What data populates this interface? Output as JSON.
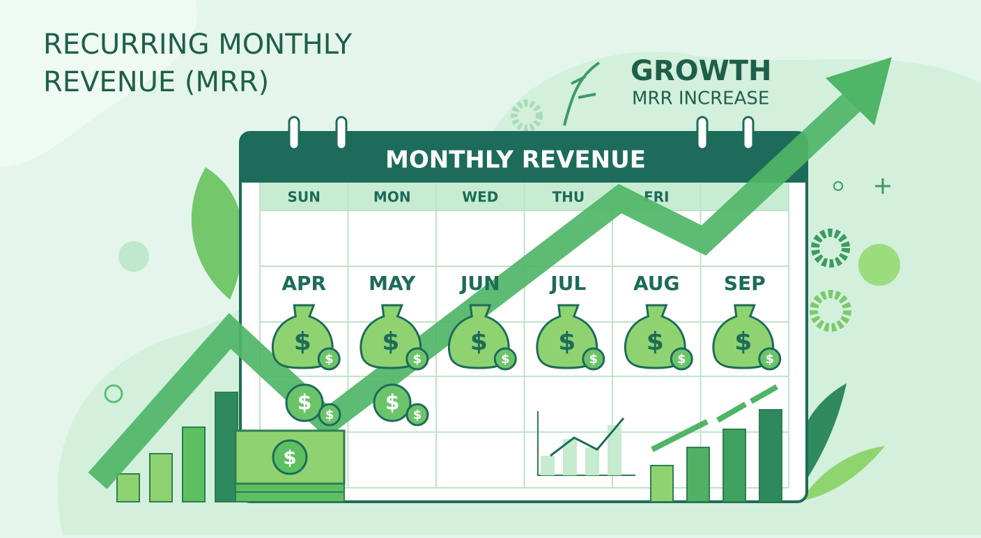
{
  "title_lines": [
    "RECURRING MONTHLY",
    "REVENUE (MRR)"
  ],
  "badge": {
    "title": "GROWTH",
    "subtitle": "MRR INCREASE"
  },
  "calendar": {
    "title": "MONTHLY REVENUE",
    "days": [
      "SUN",
      "MON",
      "WED",
      "THU",
      "FRI"
    ],
    "months": [
      "APR",
      "MAY",
      "JUN",
      "JUL",
      "AUG",
      "SEP"
    ]
  },
  "currency_symbol": "$"
}
